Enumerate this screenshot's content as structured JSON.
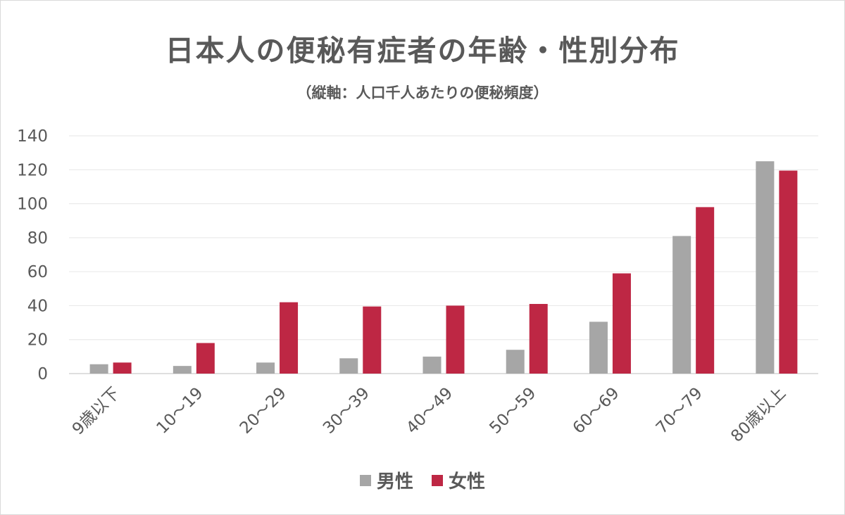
{
  "chart_data": {
    "type": "bar",
    "title": "日本人の便秘有症者の年齢・性別分布",
    "subtitle": "（縦軸：人口千人あたりの便秘頻度）",
    "categories": [
      "9歳以下",
      "10～19",
      "20～29",
      "30～39",
      "40～49",
      "50～59",
      "60～69",
      "70～79",
      "80歳以上"
    ],
    "series": [
      {
        "name": "男性",
        "color": "#a6a6a6",
        "values": [
          5.5,
          4.5,
          6.5,
          9,
          10,
          14,
          30.5,
          81,
          125
        ]
      },
      {
        "name": "女性",
        "color": "#be2744",
        "values": [
          6.5,
          18,
          42,
          39.5,
          40,
          41,
          59,
          98,
          119.5
        ]
      }
    ],
    "ylim": [
      0,
      140
    ],
    "yticks": [
      0,
      20,
      40,
      60,
      80,
      100,
      120,
      140
    ],
    "grid": true,
    "legend_position": "bottom"
  }
}
